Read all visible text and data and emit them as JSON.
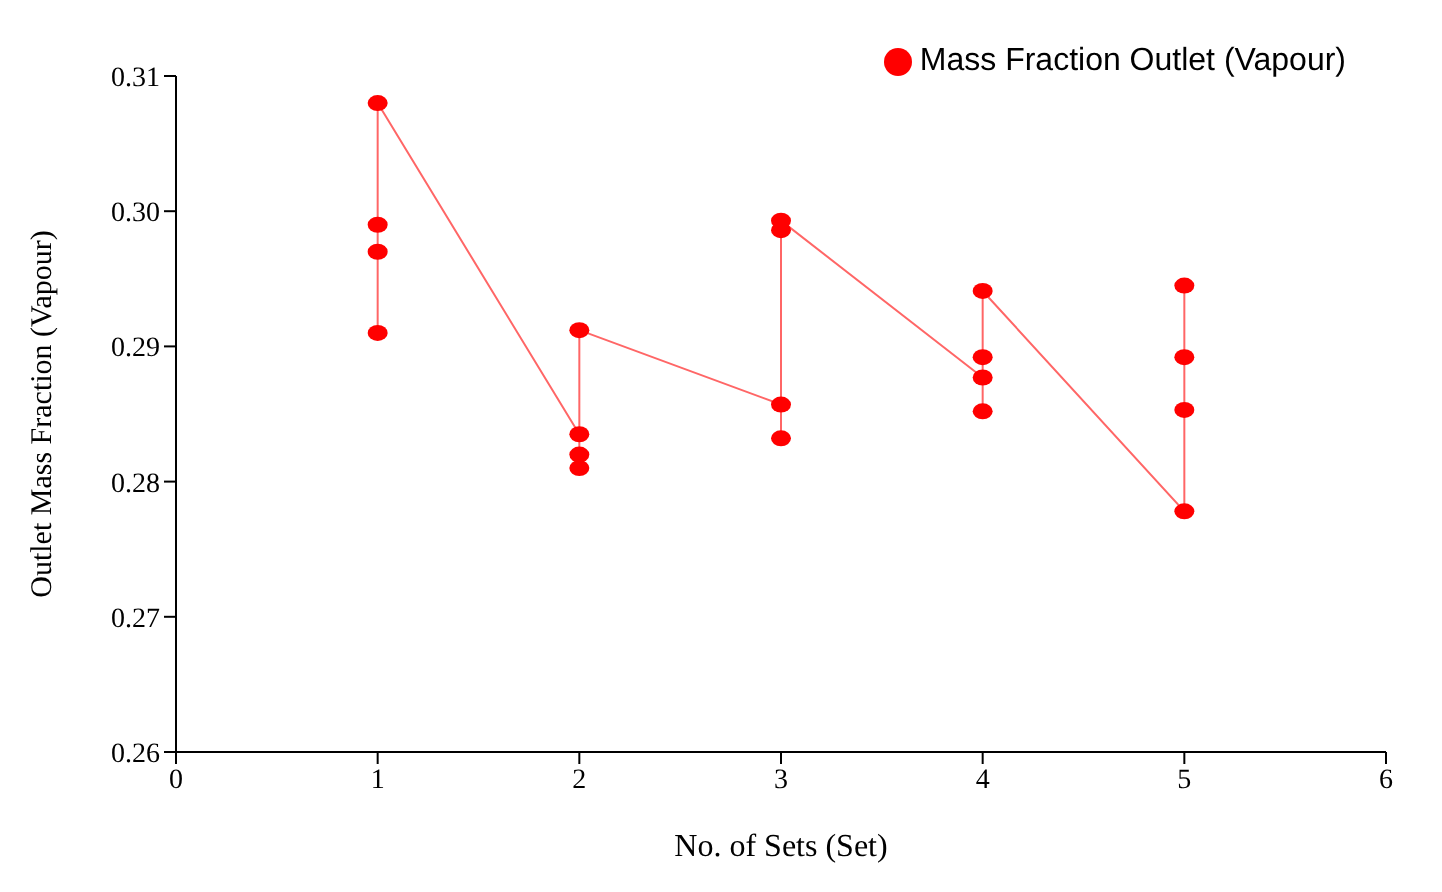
{
  "chart_data": {
    "type": "line",
    "xlabel": "No. of Sets (Set)",
    "ylabel": "Outlet Mass Fraction (Vapour)",
    "series": [
      {
        "name": "Mass Fraction Outlet (Vapour)",
        "color": "#ff0000",
        "x": [
          1,
          1,
          1,
          1,
          2,
          2,
          2,
          2,
          3,
          3,
          3,
          3,
          4,
          4,
          4,
          4,
          5,
          5,
          5,
          5
        ],
        "values": [
          0.291,
          0.297,
          0.299,
          0.308,
          0.2835,
          0.282,
          0.281,
          0.2912,
          0.2857,
          0.2832,
          0.2986,
          0.2993,
          0.2877,
          0.2852,
          0.2892,
          0.2941,
          0.2778,
          0.2853,
          0.2892,
          0.2945
        ]
      }
    ],
    "xlim": [
      0,
      6
    ],
    "xticks": [
      0,
      1,
      2,
      3,
      4,
      5,
      6
    ],
    "ylim": [
      0.26,
      0.31
    ],
    "yticks": [
      {
        "value": 0.26,
        "label": "0.26"
      },
      {
        "value": 0.27,
        "label": "0.27"
      },
      {
        "value": 0.28,
        "label": "0.28"
      },
      {
        "value": 0.29,
        "label": "0.29"
      },
      {
        "value": 0.3,
        "label": "0.30"
      },
      {
        "value": 0.31,
        "label": "0.31"
      }
    ],
    "legend": "top right",
    "marker": "circle",
    "line_style": "solid",
    "grid": false
  }
}
